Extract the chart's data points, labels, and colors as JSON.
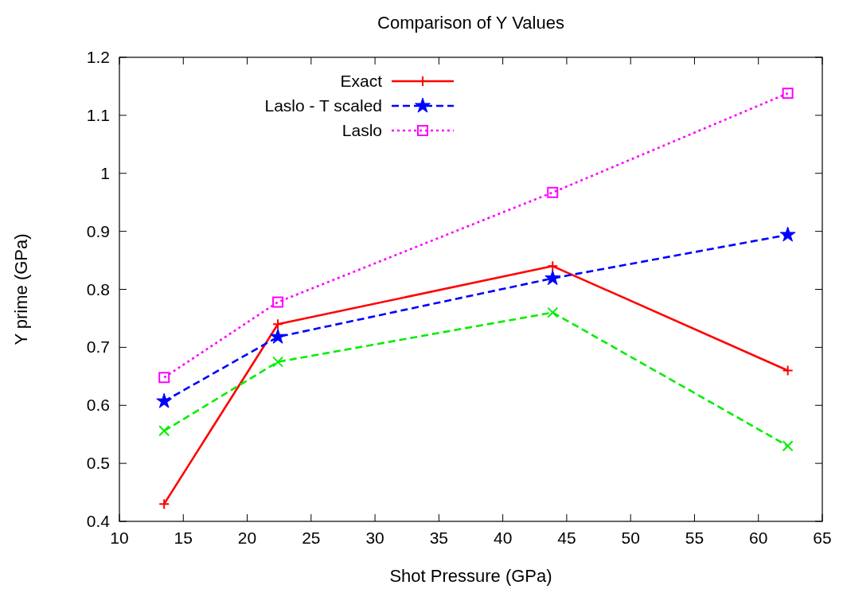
{
  "chart_data": {
    "type": "line",
    "title": "Comparison of Y Values",
    "xlabel": "Shot Pressure (GPa)",
    "ylabel": "Y prime (GPa)",
    "x": [
      13.5,
      22.4,
      43.9,
      62.3
    ],
    "series": [
      {
        "name": "Exact",
        "color": "#ff0000",
        "values": [
          0.43,
          0.74,
          0.84,
          0.66
        ],
        "marker": "cross",
        "line_style": "solid"
      },
      {
        "color": "#00ee00",
        "values": [
          0.556,
          0.675,
          0.76,
          0.53
        ],
        "marker": "cross",
        "line_style": "dashed"
      },
      {
        "name": "Laslo - T scaled",
        "color": "#0000ff",
        "values": [
          0.607,
          0.718,
          0.819,
          0.894
        ],
        "marker": "star",
        "line_style": "dashed"
      },
      {
        "name": "Laslo",
        "color": "#ff00ff",
        "values": [
          0.648,
          0.778,
          0.967,
          1.138
        ],
        "marker": "square",
        "line_style": "dotted"
      }
    ],
    "xlim": [
      10,
      65
    ],
    "xticks": [
      10,
      15,
      20,
      25,
      30,
      35,
      40,
      45,
      50,
      55,
      60,
      65
    ],
    "ylim": [
      0.4,
      1.2
    ],
    "yticks": [
      0.4,
      0.5,
      0.6,
      0.7,
      0.8,
      0.9,
      1,
      1.1,
      1.2
    ],
    "legend": "top left",
    "grid": false
  }
}
